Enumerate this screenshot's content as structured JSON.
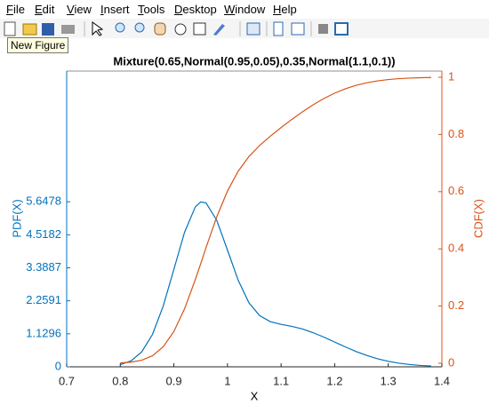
{
  "menu": [
    "File",
    "Edit",
    "View",
    "Insert",
    "Tools",
    "Desktop",
    "Window",
    "Help"
  ],
  "tooltip": "New Figure",
  "chart_data": {
    "type": "line",
    "title": "Mixture(0.65,Normal(0.95,0.05),0.35,Normal(1.1,0.1))",
    "xlabel": "X",
    "ylabel": "PDF(X)",
    "y2label": "CDF(X)",
    "x": [
      0.8,
      0.82,
      0.84,
      0.86,
      0.88,
      0.9,
      0.92,
      0.94,
      0.95,
      0.96,
      0.98,
      1.0,
      1.02,
      1.04,
      1.06,
      1.08,
      1.1,
      1.12,
      1.14,
      1.16,
      1.18,
      1.2,
      1.22,
      1.24,
      1.26,
      1.28,
      1.3,
      1.32,
      1.34,
      1.36,
      1.38
    ],
    "series": [
      {
        "color": "#0072bd",
        "axis": "y",
        "values": [
          0.073,
          0.204,
          0.509,
          1.105,
          2.071,
          3.335,
          4.608,
          5.472,
          5.639,
          5.608,
          5.012,
          3.993,
          2.961,
          2.192,
          1.75,
          1.545,
          1.454,
          1.385,
          1.293,
          1.166,
          1.014,
          0.847,
          0.68,
          0.524,
          0.388,
          0.276,
          0.189,
          0.124,
          0.078,
          0.047,
          0.028
        ]
      },
      {
        "color": "#d95319",
        "axis": "y2",
        "values": [
          0.0013,
          0.0039,
          0.0107,
          0.0262,
          0.0574,
          0.1111,
          0.1909,
          0.2927,
          0.3475,
          0.4048,
          0.512,
          0.6023,
          0.6717,
          0.7227,
          0.7616,
          0.7941,
          0.8241,
          0.8526,
          0.8794,
          0.904,
          0.9258,
          0.9445,
          0.9597,
          0.9717,
          0.9808,
          0.9874,
          0.992,
          0.9951,
          0.9971,
          0.9984,
          0.9991
        ]
      }
    ],
    "xlim": [
      0.7,
      1.4
    ],
    "xticks": [
      0.7,
      0.8,
      0.9,
      1,
      1.1,
      1.2,
      1.3,
      1.4
    ],
    "ylim": [
      0,
      10.12
    ],
    "yticks": [
      0,
      1.1296,
      2.2591,
      3.3887,
      4.5182,
      5.6478
    ],
    "y2lim": [
      -0.0124,
      1.0217
    ],
    "y2ticks": [
      0,
      0.2,
      0.4,
      0.6,
      0.8,
      1
    ],
    "ycolor": "#0072bd",
    "y2color": "#d95319"
  }
}
